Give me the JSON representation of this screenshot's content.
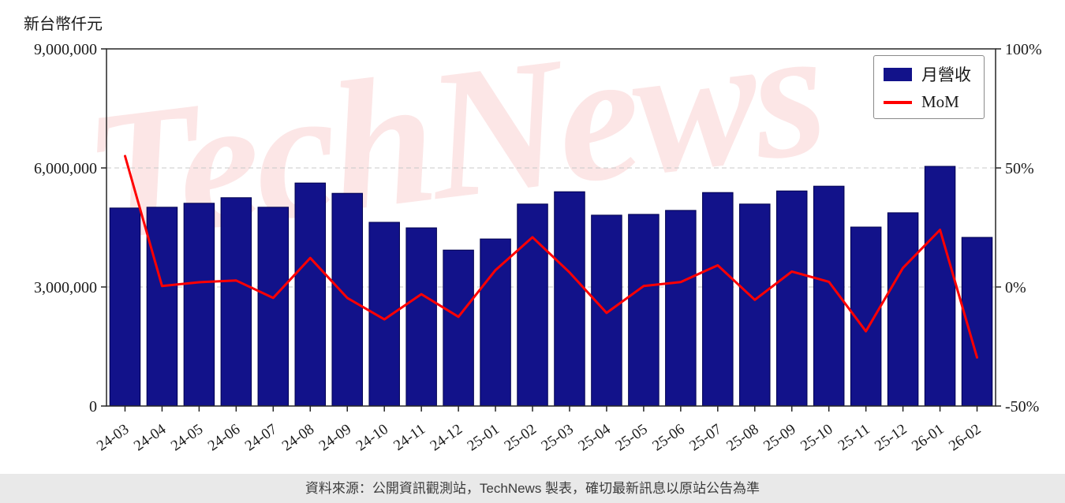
{
  "chart_data": {
    "type": "bar",
    "title": "",
    "categories": [
      "24-03",
      "24-04",
      "24-05",
      "24-06",
      "24-07",
      "24-08",
      "24-09",
      "24-10",
      "24-11",
      "24-12",
      "25-01",
      "25-02",
      "25-03",
      "25-04",
      "25-05",
      "25-06",
      "25-07",
      "25-08",
      "25-09",
      "25-10",
      "25-11",
      "25-12",
      "26-01",
      "26-02"
    ],
    "series": [
      {
        "name": "月營收",
        "type": "bar",
        "axis": "left",
        "color": "#12128a",
        "edge_color": "#000050",
        "values": [
          4990000,
          5010000,
          5110000,
          5250000,
          5010000,
          5620000,
          5360000,
          4630000,
          4490000,
          3930000,
          4210000,
          5090000,
          5400000,
          4810000,
          4830000,
          4930000,
          5380000,
          5090000,
          5420000,
          5540000,
          4510000,
          4870000,
          6040000,
          4250000
        ]
      },
      {
        "name": "MoM",
        "type": "line",
        "axis": "right",
        "color": "#ff0000",
        "values": [
          55.0,
          0.4,
          2.0,
          2.7,
          -4.6,
          12.2,
          -4.6,
          -13.6,
          -3.0,
          -12.5,
          7.1,
          20.9,
          6.1,
          -10.9,
          0.4,
          2.1,
          9.1,
          -5.4,
          6.5,
          2.2,
          -18.6,
          8.0,
          24.0,
          -29.6
        ]
      }
    ],
    "left_axis": {
      "label": "新台幣仟元",
      "min": 0,
      "max": 9000000,
      "ticks": [
        0,
        3000000,
        6000000,
        9000000
      ]
    },
    "right_axis": {
      "min": -50,
      "max": 100,
      "ticks": [
        -50,
        0,
        50,
        100
      ],
      "suffix": "%"
    },
    "grid": "horizontal-dashed",
    "legend_position": "top-right"
  },
  "watermark": {
    "text": "TechNews"
  },
  "footer": {
    "text": "資料來源：公開資訊觀測站，TechNews 製表，確切最新訊息以原站公告為準"
  }
}
